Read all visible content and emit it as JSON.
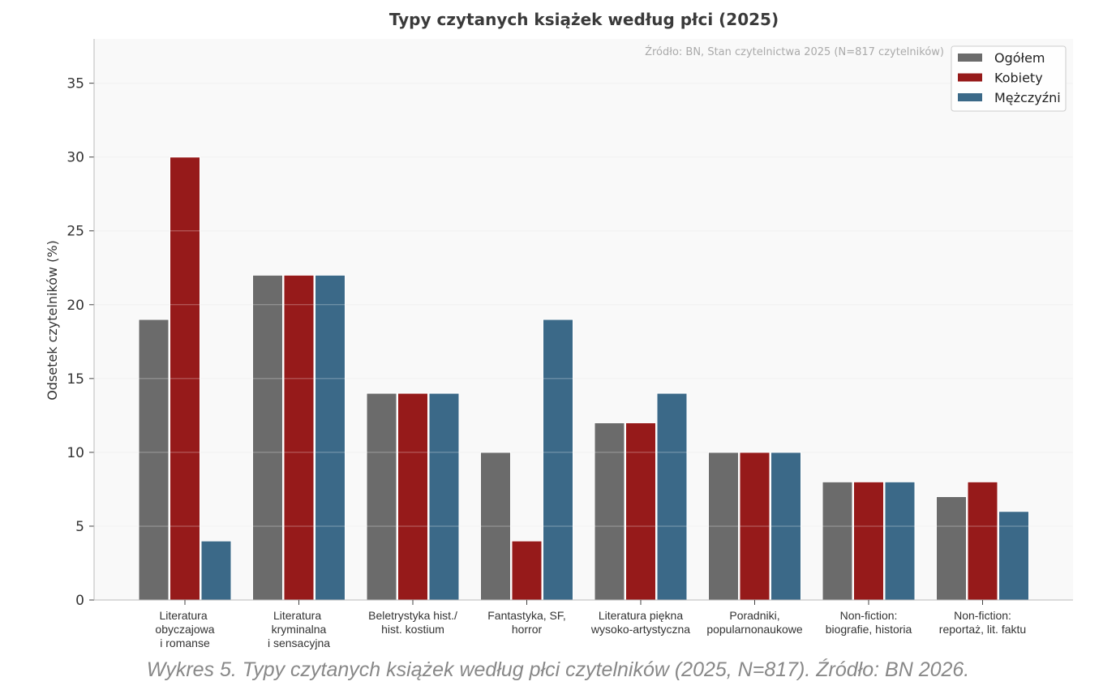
{
  "chart_data": {
    "type": "bar",
    "title": "Typy czytanych książek według płci (2025)",
    "xlabel": "",
    "ylabel": "Odsetek czytelników (%)",
    "ylim": [
      0,
      38
    ],
    "yticks": [
      0,
      5,
      10,
      15,
      20,
      25,
      30,
      35
    ],
    "grid": true,
    "legend_position": "top-right",
    "annotation": "Źródło: BN, Stan czytelnictwa 2025 (N=817 czytelników)",
    "categories": [
      [
        "Literatura obyczajowa",
        "i romanse"
      ],
      [
        "Literatura kryminalna",
        "i sensacyjna"
      ],
      [
        "Beletrystyka hist./",
        "hist. kostium"
      ],
      [
        "Fantastyka, SF,",
        "horror"
      ],
      [
        "Literatura piękna",
        "wysoko-artystyczna"
      ],
      [
        "Poradniki,",
        "popularnonaukowe"
      ],
      [
        "Non-fiction:",
        "biografie, historia"
      ],
      [
        "Non-fiction:",
        "reportaż, lit. faktu"
      ]
    ],
    "series": [
      {
        "name": "Ogółem",
        "color": "#6b6b6b",
        "values": [
          19,
          22,
          14,
          10,
          12,
          10,
          8,
          7
        ]
      },
      {
        "name": "Kobiety",
        "color": "#961a1a",
        "values": [
          30,
          22,
          14,
          4,
          12,
          10,
          8,
          8
        ]
      },
      {
        "name": "Mężczyźni",
        "color": "#3b6988",
        "values": [
          4,
          22,
          14,
          19,
          14,
          10,
          8,
          6
        ]
      }
    ]
  },
  "caption": "Wykres 5. Typy czytanych książek według płci czytelników (2025, N=817). Źródło: BN 2026."
}
